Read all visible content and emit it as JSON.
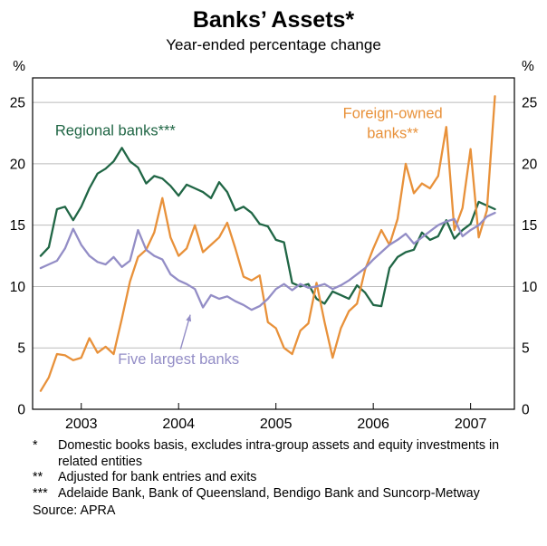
{
  "header": {
    "title": "Banks’ Assets*",
    "subtitle": "Year-ended percentage change"
  },
  "chart_data": {
    "type": "line",
    "title": "Banks’ Assets*",
    "subtitle": "Year-ended percentage change",
    "unit_left": "%",
    "unit_right": "%",
    "ylim": [
      0,
      27
    ],
    "yticks": [
      0,
      5,
      10,
      15,
      20,
      25
    ],
    "xlim": [
      2002.5,
      2007.45
    ],
    "xticks": [
      2003,
      2004,
      2005,
      2006,
      2007
    ],
    "xtick_labels": [
      "2003",
      "2004",
      "2005",
      "2006",
      "2007"
    ],
    "grid": true,
    "x": [
      2002.583,
      2002.667,
      2002.75,
      2002.833,
      2002.917,
      2003.0,
      2003.083,
      2003.167,
      2003.25,
      2003.333,
      2003.417,
      2003.5,
      2003.583,
      2003.667,
      2003.75,
      2003.833,
      2003.917,
      2004.0,
      2004.083,
      2004.167,
      2004.25,
      2004.333,
      2004.417,
      2004.5,
      2004.583,
      2004.667,
      2004.75,
      2004.833,
      2004.917,
      2005.0,
      2005.083,
      2005.167,
      2005.25,
      2005.333,
      2005.417,
      2005.5,
      2005.583,
      2005.667,
      2005.75,
      2005.833,
      2005.917,
      2006.0,
      2006.083,
      2006.167,
      2006.25,
      2006.333,
      2006.417,
      2006.5,
      2006.583,
      2006.667,
      2006.75,
      2006.833,
      2006.917,
      2007.0,
      2007.083,
      2007.167,
      2007.25
    ],
    "series": [
      {
        "name": "Regional banks***",
        "color": "#206645",
        "values": [
          12.5,
          13.2,
          16.3,
          16.5,
          15.4,
          16.5,
          18.0,
          19.2,
          19.6,
          20.2,
          21.3,
          20.2,
          19.7,
          18.4,
          19.0,
          18.8,
          18.2,
          17.4,
          18.3,
          18.0,
          17.7,
          17.2,
          18.5,
          17.7,
          16.2,
          16.5,
          16.0,
          15.1,
          14.9,
          13.8,
          13.6,
          10.3,
          10.0,
          10.2,
          9.0,
          8.6,
          9.6,
          9.3,
          9.0,
          10.1,
          9.5,
          8.5,
          8.4,
          11.5,
          12.4,
          12.8,
          13.0,
          14.4,
          13.8,
          14.1,
          15.4,
          13.9,
          14.6,
          15.1,
          16.9,
          16.6,
          16.3
        ]
      },
      {
        "name": "Foreign-owned banks**",
        "color": "#e8913a",
        "values": [
          1.5,
          2.6,
          4.5,
          4.4,
          4.0,
          4.2,
          5.8,
          4.6,
          5.1,
          4.5,
          7.4,
          10.4,
          12.4,
          13.0,
          14.4,
          17.2,
          14.0,
          12.5,
          13.1,
          15.0,
          12.8,
          13.4,
          14.0,
          15.2,
          13.1,
          10.8,
          10.5,
          10.9,
          7.1,
          6.6,
          5.0,
          4.5,
          6.4,
          7.0,
          10.3,
          7.1,
          4.2,
          6.6,
          8.0,
          8.6,
          11.4,
          13.1,
          14.6,
          13.4,
          15.5,
          20.0,
          17.6,
          18.4,
          18.0,
          19.0,
          23.0,
          14.6,
          16.4,
          21.2,
          14.0,
          16.2,
          25.5
        ]
      },
      {
        "name": "Five largest banks",
        "color": "#938dc6",
        "values": [
          11.5,
          11.8,
          12.1,
          13.1,
          14.7,
          13.4,
          12.5,
          12.0,
          11.8,
          12.4,
          11.6,
          12.1,
          14.6,
          13.0,
          12.5,
          12.2,
          11.0,
          10.5,
          10.2,
          9.8,
          8.3,
          9.3,
          9.0,
          9.2,
          8.8,
          8.5,
          8.1,
          8.4,
          9.0,
          9.8,
          10.2,
          9.7,
          10.2,
          9.9,
          10.0,
          10.2,
          9.8,
          10.1,
          10.5,
          11.0,
          11.5,
          12.2,
          12.8,
          13.4,
          13.8,
          14.3,
          13.5,
          14.0,
          14.5,
          15.0,
          15.3,
          15.5,
          14.1,
          14.6,
          15.0,
          15.7,
          16.0
        ]
      }
    ],
    "annotations": [
      {
        "text": "Regional banks***",
        "x": 2003.35,
        "y": 22.3,
        "color": "#206645",
        "anchor": "middle",
        "size": 16.5
      },
      {
        "text": "Foreign-owned",
        "x": 2006.2,
        "y": 23.7,
        "color": "#e8913a",
        "anchor": "middle",
        "size": 16.5
      },
      {
        "text": "banks**",
        "x": 2006.2,
        "y": 22.1,
        "color": "#e8913a",
        "anchor": "middle",
        "size": 16.5
      },
      {
        "text": "Five largest banks",
        "x": 2004.0,
        "y": 3.7,
        "color": "#938dc6",
        "anchor": "middle",
        "size": 16.5
      }
    ],
    "pointer": {
      "x1": 2004.02,
      "y1": 4.9,
      "x2": 2004.12,
      "y2": 7.7,
      "color": "#938dc6"
    },
    "legend_position": "inline-labels"
  },
  "footnotes": [
    {
      "marker": "*",
      "text": "Domestic books basis, excludes intra-group assets and equity investments in related entities"
    },
    {
      "marker": "**",
      "text": "Adjusted for bank entries and exits"
    },
    {
      "marker": "***",
      "text": "Adelaide Bank, Bank of Queensland, Bendigo Bank and Suncorp-Metway"
    }
  ],
  "source": "Source: APRA"
}
